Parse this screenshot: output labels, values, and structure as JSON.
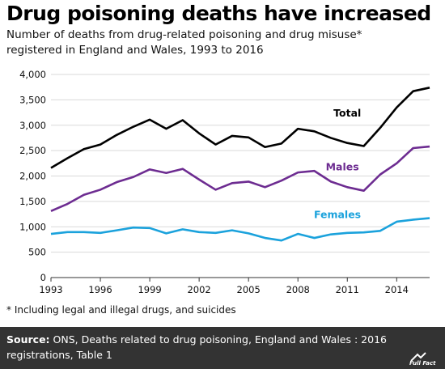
{
  "header": {
    "title": "Drug poisoning deaths have increased",
    "subtitle_line1": "Number of deaths from drug-related poisoning and drug misuse*",
    "subtitle_line2": "registered in England and Wales, 1993 to 2016"
  },
  "footnote": "* Including legal and illegal drugs, and suicides",
  "footer": {
    "source_label": "Source:",
    "source_line1": " ONS, Deaths related to drug poisoning, England and Wales : 2016",
    "source_line2": "registrations, Table 1",
    "logo_text": "Full Fact"
  },
  "colors": {
    "total": "#000000",
    "males": "#6d2c91",
    "females": "#1ba2dc",
    "grid": "#d9d9d9",
    "footer_bg": "#333333"
  },
  "chart_data": {
    "type": "line",
    "x": [
      1993,
      1994,
      1995,
      1996,
      1997,
      1998,
      1999,
      2000,
      2001,
      2002,
      2003,
      2004,
      2005,
      2006,
      2007,
      2008,
      2009,
      2010,
      2011,
      2012,
      2013,
      2014,
      2015,
      2016
    ],
    "xticks": [
      1993,
      1996,
      1999,
      2002,
      2005,
      2008,
      2011,
      2014
    ],
    "xlim": [
      1993,
      2016
    ],
    "ylim": [
      0,
      4000
    ],
    "yticks": [
      0,
      500,
      1000,
      1500,
      2000,
      2500,
      3000,
      3500,
      4000
    ],
    "ytick_labels": [
      "0",
      "500",
      "1,000",
      "1,500",
      "2,000",
      "2,500",
      "3,000",
      "3,500",
      "4,000"
    ],
    "grid": true,
    "series": [
      {
        "name": "Total",
        "key": "total",
        "values": [
          2160,
          2350,
          2530,
          2620,
          2810,
          2970,
          3110,
          2930,
          3100,
          2840,
          2620,
          2790,
          2760,
          2570,
          2640,
          2930,
          2880,
          2750,
          2650,
          2590,
          2950,
          3350,
          3670,
          3740
        ]
      },
      {
        "name": "Males",
        "key": "males",
        "values": [
          1310,
          1450,
          1630,
          1730,
          1880,
          1980,
          2130,
          2060,
          2140,
          1930,
          1730,
          1860,
          1890,
          1780,
          1910,
          2070,
          2100,
          1890,
          1780,
          1710,
          2030,
          2250,
          2550,
          2580
        ]
      },
      {
        "name": "Females",
        "key": "females",
        "values": [
          860,
          895,
          895,
          880,
          930,
          985,
          975,
          870,
          950,
          895,
          880,
          930,
          870,
          780,
          730,
          860,
          780,
          850,
          880,
          890,
          920,
          1100,
          1140,
          1170
        ]
      }
    ]
  }
}
